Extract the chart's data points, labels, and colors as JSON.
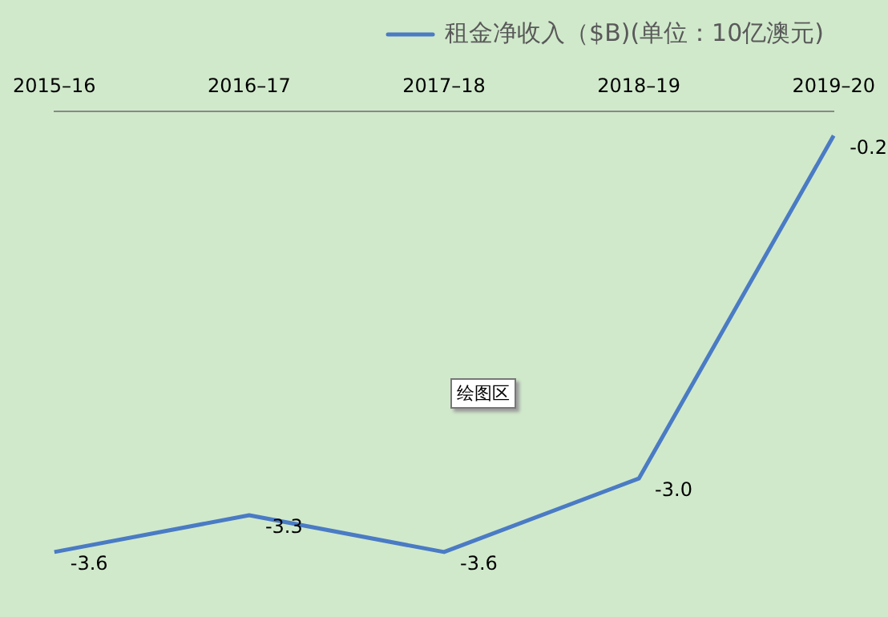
{
  "chart_data": {
    "type": "line",
    "categories": [
      "2015–16",
      "2016–17",
      "2017–18",
      "2018–19",
      "2019–20"
    ],
    "series": [
      {
        "name": "租金净收入（$B)(单位：10亿澳元)",
        "color": "#4a7bc4",
        "values": [
          -3.6,
          -3.3,
          -3.6,
          -3.0,
          -0.2
        ],
        "value_labels": [
          "-3.6",
          "-3.3",
          "-3.6",
          "-3.0",
          "-0.2"
        ]
      }
    ],
    "legend": "top",
    "marker": "none",
    "line_style": "solid",
    "annotations": [
      "绘图区"
    ]
  }
}
